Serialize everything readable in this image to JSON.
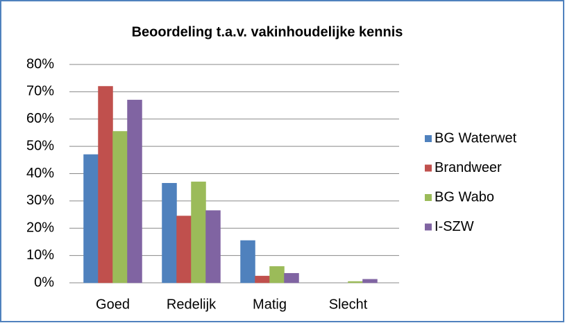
{
  "chart_data": {
    "type": "bar",
    "title": "Beoordeling t.a.v. vakinhoudelijke kennis",
    "categories": [
      "Goed",
      "Redelijk",
      "Matig",
      "Slecht"
    ],
    "series": [
      {
        "name": "BG Waterwet",
        "color": "#4f81bd",
        "values": [
          47,
          36.5,
          15.5,
          0
        ]
      },
      {
        "name": "Brandweer",
        "color": "#c0504d",
        "values": [
          72,
          24.5,
          2.5,
          0
        ]
      },
      {
        "name": "BG Wabo",
        "color": "#9bbb59",
        "values": [
          55.5,
          37,
          6,
          0.5
        ]
      },
      {
        "name": "I-SZW",
        "color": "#8064a2",
        "values": [
          67,
          26.5,
          3.5,
          1.3
        ]
      }
    ],
    "ylim": [
      0,
      80
    ],
    "yticks": [
      {
        "value": 0,
        "label": "0%"
      },
      {
        "value": 10,
        "label": "10%"
      },
      {
        "value": 20,
        "label": "20%"
      },
      {
        "value": 30,
        "label": "30%"
      },
      {
        "value": 40,
        "label": "40%"
      },
      {
        "value": 50,
        "label": "50%"
      },
      {
        "value": 60,
        "label": "60%"
      },
      {
        "value": 70,
        "label": "70%"
      },
      {
        "value": 80,
        "label": "80%"
      }
    ],
    "grid": true,
    "legend": "right"
  }
}
